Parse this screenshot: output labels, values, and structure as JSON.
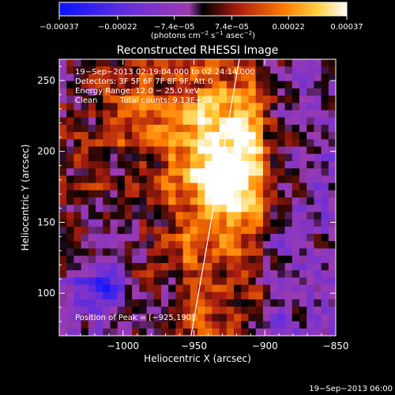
{
  "chart_data": {
    "type": "heatmap",
    "title": "Reconstructed RHESSI Image",
    "xlabel": "Heliocentric X (arcsec)",
    "ylabel": "Heliocentric Y (arcsec)",
    "xlim": [
      -1045,
      -850
    ],
    "ylim": [
      70,
      265
    ],
    "x_ticks": [
      -1000,
      -950,
      -900,
      -850
    ],
    "x_tick_labels": [
      "−1000",
      "−950",
      "−900",
      "−850"
    ],
    "y_ticks": [
      100,
      150,
      200,
      250
    ],
    "y_tick_labels": [
      "100",
      "150",
      "200",
      "250"
    ],
    "colorbar": {
      "min": -0.00037,
      "max": 0.00037,
      "ticks": [
        -0.00037,
        -0.00022,
        -7.4e-05,
        7.4e-05,
        0.00022,
        0.00037
      ],
      "tick_labels": [
        "−0.00037",
        "−0.00022",
        "−7.4e−05",
        "7.4e−05",
        "0.00022",
        "0.00037"
      ],
      "units_prefix": "(photons cm",
      "units_exp1": "−2",
      "units_mid": " s",
      "units_exp2": "−1",
      "units_mid2": " asec",
      "units_exp3": "−2",
      "units_suffix": ")"
    },
    "annotations": {
      "time_range": "19−Sep−2013 02:19:04.000 to 02:24:14.000",
      "detectors": "Detectors: 3F 5F 6F 7F 8F 9F, Att 0",
      "energy": "Energy Range: 12.0 − 25.0 keV",
      "algorithm": "Clean",
      "total_counts": "Total counts: 9.13E+03",
      "peak": "Position of Peak = [−925,190]"
    },
    "peak": [
      -925,
      190
    ],
    "limb_line": [
      [
        -952,
        70
      ],
      [
        -918,
        265
      ]
    ],
    "grid": false,
    "timestamp": "19−Sep−2013 06:00"
  }
}
